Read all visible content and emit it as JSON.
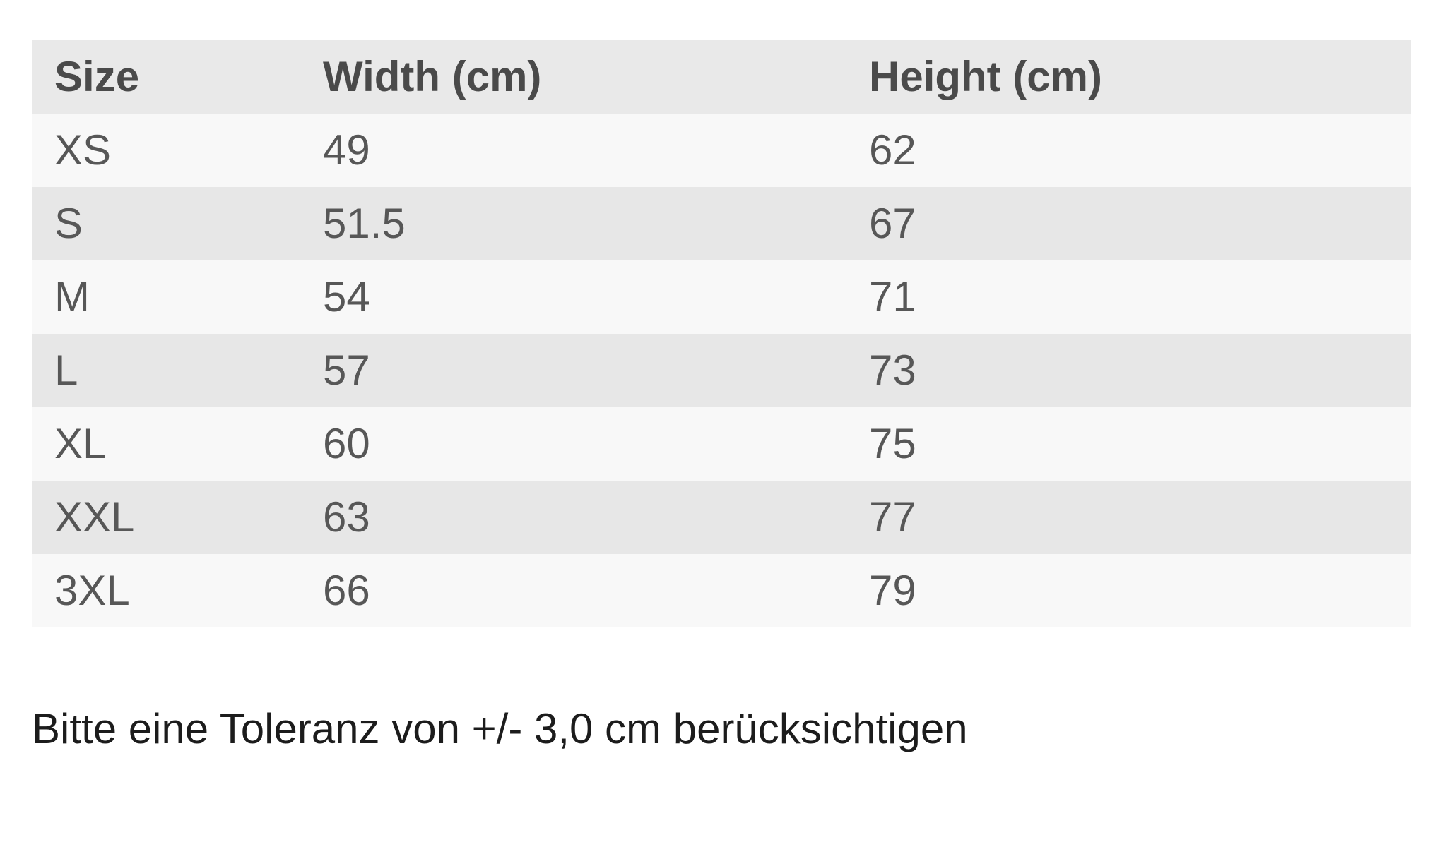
{
  "size_chart": {
    "columns": [
      {
        "label": "Size"
      },
      {
        "label": "Width (cm)"
      },
      {
        "label": "Height (cm)"
      }
    ],
    "rows": [
      {
        "size": "XS",
        "width": "49",
        "height": "62"
      },
      {
        "size": "S",
        "width": "51.5",
        "height": "67"
      },
      {
        "size": "M",
        "width": "54",
        "height": "71"
      },
      {
        "size": "L",
        "width": "57",
        "height": "73"
      },
      {
        "size": "XL",
        "width": "60",
        "height": "75"
      },
      {
        "size": "XXL",
        "width": "63",
        "height": "77"
      },
      {
        "size": "3XL",
        "width": "66",
        "height": "79"
      }
    ]
  },
  "note": {
    "text": "Bitte eine Toleranz von +/- 3,0 cm berücksichtigen"
  },
  "colors": {
    "page_bg": "#ffffff",
    "header_bg": "#e9e9e9",
    "row_odd_bg": "#f8f8f8",
    "row_even_bg": "#e7e7e7",
    "header_text": "#4a4a4a",
    "cell_text": "#575757",
    "note_text": "#1c1c1c"
  }
}
